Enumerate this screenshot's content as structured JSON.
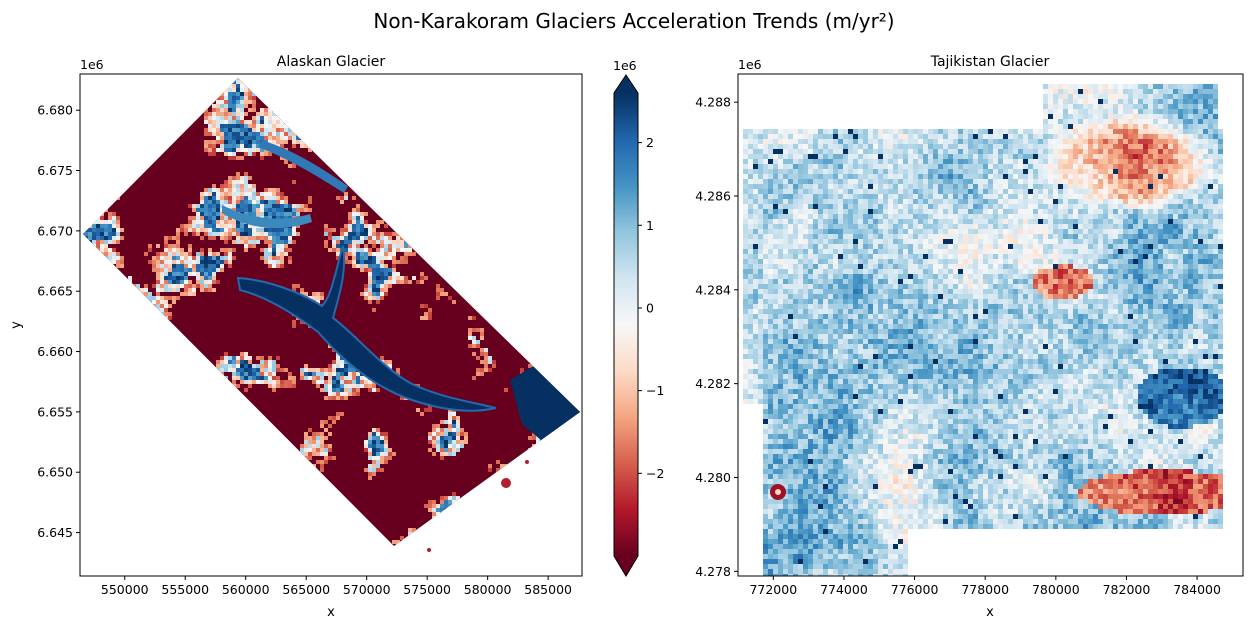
{
  "title": "Non-Karakoram Glaciers Acceleration Trends (m/yr²)",
  "colormap": {
    "name": "RdBu",
    "stops": [
      "#67001f",
      "#b2182b",
      "#d6604d",
      "#f4a582",
      "#fddbc7",
      "#f7f7f7",
      "#d1e5f0",
      "#92c5de",
      "#4393c3",
      "#2166ac",
      "#053061"
    ],
    "vmin": -3.0,
    "vmax": 2.6,
    "extend": "both"
  },
  "chart_data": [
    {
      "type": "heatmap",
      "title": "Alaskan Glacier",
      "xlabel": "x",
      "ylabel": "y",
      "xlim": [
        546300,
        587800
      ],
      "ylim": [
        6641400,
        6683000
      ],
      "xticks": [
        550000,
        555000,
        560000,
        565000,
        570000,
        575000,
        580000,
        585000
      ],
      "xtick_labels": [
        "550000",
        "555000",
        "560000",
        "565000",
        "570000",
        "575000",
        "580000",
        "585000"
      ],
      "yticks": [
        6.645,
        6.65,
        6.655,
        6.66,
        6.665,
        6.67,
        6.675,
        6.68
      ],
      "ytick_labels": [
        "6.645",
        "6.650",
        "6.655",
        "6.660",
        "6.665",
        "6.670",
        "6.675",
        "6.680"
      ],
      "y_offset_label": "1e6",
      "grid": false
    },
    {
      "type": "heatmap",
      "title": "Tajikistan Glacier",
      "xlabel": "x",
      "ylabel": "",
      "xlim": [
        771000,
        785300
      ],
      "ylim": [
        4277900,
        4288600
      ],
      "xticks": [
        772000,
        774000,
        776000,
        778000,
        780000,
        782000,
        784000
      ],
      "xtick_labels": [
        "772000",
        "774000",
        "776000",
        "778000",
        "780000",
        "782000",
        "784000"
      ],
      "yticks": [
        4.278,
        4.28,
        4.282,
        4.284,
        4.286,
        4.288
      ],
      "ytick_labels": [
        "4.278",
        "4.280",
        "4.282",
        "4.284",
        "4.286",
        "4.288"
      ],
      "y_offset_label": "1e6",
      "grid": false
    }
  ],
  "colorbar": {
    "ticks": [
      -2,
      -1,
      0,
      1,
      2
    ],
    "tick_labels": [
      "−2",
      "−1",
      "0",
      "1",
      "2"
    ],
    "offset_label": "1e6"
  }
}
